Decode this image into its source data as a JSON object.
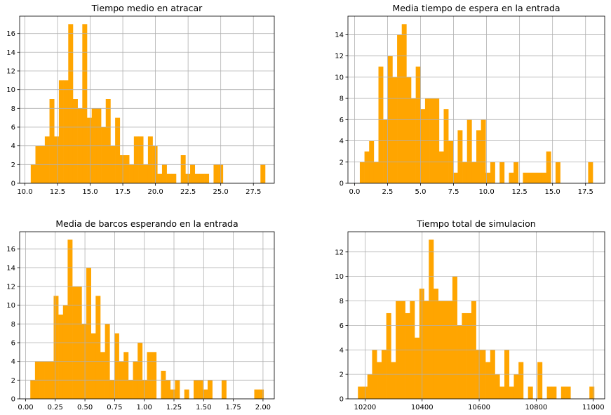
{
  "chart_data": [
    {
      "type": "bar",
      "title": "Tiempo medio en atracar",
      "bar_color": "#ffa500",
      "grid": true,
      "xlim": [
        9.6,
        29.1
      ],
      "ylim": [
        0,
        17.85
      ],
      "xticks": [
        10.0,
        12.5,
        15.0,
        17.5,
        20.0,
        22.5,
        25.0,
        27.5
      ],
      "xtick_labels": [
        "10.0",
        "12.5",
        "15.0",
        "17.5",
        "20.0",
        "22.5",
        "25.0",
        "27.5"
      ],
      "yticks": [
        0,
        2,
        4,
        6,
        8,
        10,
        12,
        14,
        16
      ],
      "ytick_labels": [
        "0",
        "2",
        "4",
        "6",
        "8",
        "10",
        "12",
        "14",
        "16"
      ],
      "bin_start": 10.45,
      "bin_width": 0.359,
      "values": [
        2,
        4,
        4,
        5,
        9,
        5,
        11,
        11,
        17,
        9,
        8,
        17,
        7,
        8,
        8,
        6,
        9,
        4,
        7,
        3,
        3,
        2,
        5,
        5,
        2,
        5,
        4,
        1,
        2,
        1,
        1,
        0,
        3,
        1,
        2,
        1,
        1,
        1,
        0,
        2,
        2,
        0,
        0,
        0,
        0,
        0,
        0,
        0,
        0,
        2
      ]
    },
    {
      "type": "bar",
      "title": "Media tiempo de espera en la entrada",
      "bar_color": "#ffa500",
      "grid": true,
      "xlim": [
        -0.5,
        18.95
      ],
      "ylim": [
        0,
        15.75
      ],
      "xticks": [
        0.0,
        2.5,
        5.0,
        7.5,
        10.0,
        12.5,
        15.0,
        17.5
      ],
      "xtick_labels": [
        "0.0",
        "2.5",
        "5.0",
        "7.5",
        "10.0",
        "12.5",
        "15.0",
        "17.5"
      ],
      "yticks": [
        0,
        2,
        4,
        6,
        8,
        10,
        12,
        14
      ],
      "ytick_labels": [
        "0",
        "2",
        "4",
        "6",
        "8",
        "10",
        "12",
        "14"
      ],
      "bin_start": 0.4,
      "bin_width": 0.353,
      "values": [
        2,
        3,
        4,
        2,
        11,
        6,
        12,
        10,
        14,
        15,
        10,
        8,
        11,
        7,
        8,
        8,
        8,
        3,
        7,
        4,
        1,
        5,
        2,
        6,
        2,
        5,
        6,
        1,
        2,
        0,
        2,
        0,
        1,
        2,
        0,
        1,
        1,
        1,
        1,
        1,
        3,
        0,
        2,
        0,
        0,
        0,
        0,
        0,
        0,
        2
      ]
    },
    {
      "type": "bar",
      "title": "Media de barcos esperando en la entrada",
      "bar_color": "#ffa500",
      "grid": true,
      "xlim": [
        -0.05,
        2.095
      ],
      "ylim": [
        0,
        17.85
      ],
      "xticks": [
        0.0,
        0.25,
        0.5,
        0.75,
        1.0,
        1.25,
        1.5,
        1.75,
        2.0
      ],
      "xtick_labels": [
        "0.00",
        "0.25",
        "0.50",
        "0.75",
        "1.00",
        "1.25",
        "1.50",
        "1.75",
        "2.00"
      ],
      "yticks": [
        0,
        2,
        4,
        6,
        8,
        10,
        12,
        14,
        16
      ],
      "ytick_labels": [
        "0",
        "2",
        "4",
        "6",
        "8",
        "10",
        "12",
        "14",
        "16"
      ],
      "bin_start": 0.04,
      "bin_width": 0.0393,
      "values": [
        2,
        4,
        4,
        4,
        4,
        11,
        9,
        10,
        17,
        12,
        12,
        8,
        14,
        7,
        11,
        5,
        8,
        2,
        7,
        4,
        5,
        2,
        4,
        6,
        2,
        5,
        5,
        0,
        3,
        2,
        1,
        2,
        0,
        1,
        0,
        2,
        2,
        1,
        2,
        0,
        0,
        2,
        0,
        0,
        0,
        0,
        0,
        0,
        1,
        1
      ]
    },
    {
      "type": "bar",
      "title": "Tiempo total de simulacion",
      "bar_color": "#ffa500",
      "grid": true,
      "xlim": [
        10140,
        11040
      ],
      "ylim": [
        0,
        13.65
      ],
      "xticks": [
        10200,
        10400,
        10600,
        10800,
        11000
      ],
      "xtick_labels": [
        "10200",
        "10400",
        "10600",
        "10800",
        "11000"
      ],
      "yticks": [
        0,
        2,
        4,
        6,
        8,
        10,
        12
      ],
      "ytick_labels": [
        "0",
        "2",
        "4",
        "6",
        "8",
        "10",
        "12"
      ],
      "bin_start": 10175,
      "bin_width": 16.56,
      "values": [
        1,
        1,
        2,
        4,
        3,
        4,
        7,
        3,
        8,
        8,
        7,
        8,
        5,
        9,
        8,
        13,
        9,
        8,
        8,
        8,
        10,
        6,
        7,
        7,
        8,
        4,
        4,
        3,
        4,
        2,
        1,
        4,
        1,
        2,
        3,
        0,
        1,
        0,
        3,
        0,
        1,
        1,
        0,
        1,
        1,
        0,
        0,
        0,
        0,
        1
      ]
    }
  ]
}
